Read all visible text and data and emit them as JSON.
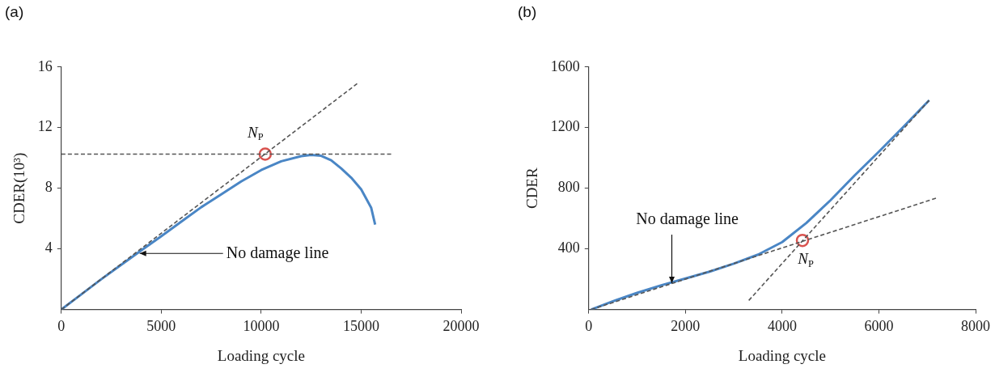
{
  "chart_data": [
    {
      "type": "line",
      "title": "(a)",
      "xlabel": "Loading cycle",
      "ylabel": "CDER(10³)",
      "xlim": [
        0,
        20000
      ],
      "xticks": [
        0,
        5000,
        10000,
        15000,
        20000
      ],
      "ylim": [
        0,
        16
      ],
      "yticks": [
        4,
        8,
        12,
        16
      ],
      "grid": false,
      "legend": false,
      "marker": "none",
      "series": [
        {
          "color": "#4a86c5",
          "x": [
            0,
            1000,
            2000,
            3000,
            4000,
            5000,
            6000,
            7000,
            8000,
            9000,
            10000,
            11000,
            12000,
            12500,
            13000,
            13500,
            14000,
            14500,
            15000,
            15500,
            15700
          ],
          "values": [
            0,
            1.0,
            2.0,
            2.95,
            3.9,
            4.83,
            5.8,
            6.75,
            7.6,
            8.45,
            9.2,
            9.78,
            10.12,
            10.2,
            10.14,
            9.85,
            9.31,
            8.7,
            7.93,
            6.72,
            5.6
          ]
        },
        {
          "color": "#555555",
          "line_style": "dashed",
          "x": [
            0,
            14800
          ],
          "values": [
            0,
            14.9
          ]
        },
        {
          "color": "#555555",
          "line_style": "dashed",
          "x": [
            0,
            16500
          ],
          "values": [
            10.25,
            10.25
          ]
        },
        {
          "type": "scatter",
          "color": "#d9534f",
          "marker": "circle",
          "x": [
            10200
          ],
          "values": [
            10.25
          ]
        }
      ],
      "annotations": [
        {
          "text": "N$_{P}$",
          "x": 10200,
          "y": 10.25
        },
        {
          "text": "No damage line",
          "x": 3800,
          "y": 3.7
        }
      ]
    },
    {
      "type": "line",
      "title": "(b)",
      "xlabel": "Loading cycle",
      "ylabel": "CDER",
      "xlim": [
        0,
        8000
      ],
      "xticks": [
        0,
        2000,
        4000,
        6000,
        8000
      ],
      "ylim": [
        0,
        1600
      ],
      "yticks": [
        400,
        800,
        1200,
        1600
      ],
      "grid": false,
      "legend": false,
      "marker": "none",
      "series": [
        {
          "color": "#4a86c5",
          "x": [
            50,
            500,
            1000,
            1500,
            2000,
            2500,
            3000,
            3500,
            4000,
            4500,
            5000,
            5500,
            6000,
            6500,
            7040
          ],
          "values": [
            0,
            55,
            110,
            160,
            205,
            250,
            303,
            362,
            445,
            571,
            721,
            885,
            1041,
            1203,
            1380
          ]
        },
        {
          "color": "#555555",
          "line_style": "dashed",
          "x": [
            50,
            7180
          ],
          "values": [
            0,
            734
          ]
        },
        {
          "color": "#555555",
          "line_style": "dashed",
          "x": [
            7040,
            3310
          ],
          "values": [
            1380,
            60
          ]
        },
        {
          "type": "scatter",
          "color": "#d9534f",
          "marker": "circle",
          "x": [
            4420
          ],
          "values": [
            456
          ]
        }
      ],
      "annotations": [
        {
          "text": "N$_{P}$",
          "x": 4420,
          "y": 456
        },
        {
          "text": "No damage line",
          "x": 1718,
          "y": 163
        }
      ]
    }
  ]
}
